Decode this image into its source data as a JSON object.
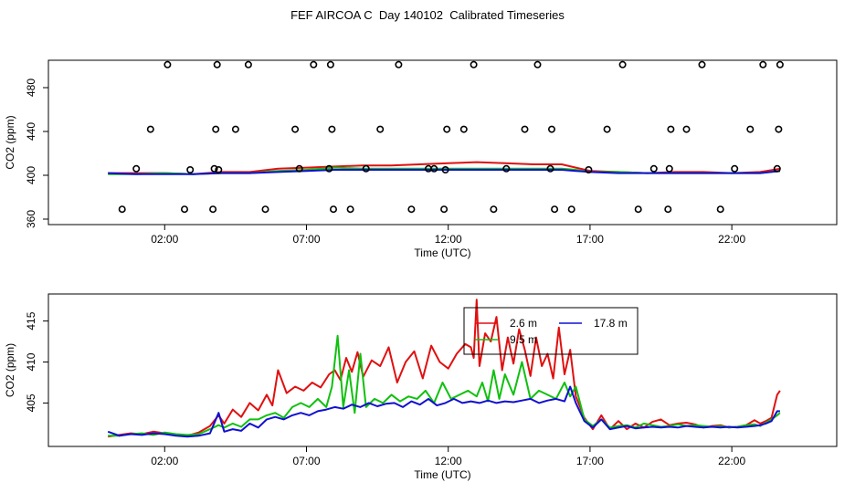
{
  "title": "FEF AIRCOA C  Day 140102  Calibrated Timeseries",
  "colors": {
    "red": "#e01010",
    "green": "#10c010",
    "blue": "#1010d0",
    "axis": "#000000"
  },
  "chart_data": [
    {
      "type": "scatter+line",
      "xlabel": "Time (UTC)",
      "ylabel": "CO2 (ppm)",
      "x_ticks": [
        "02:00",
        "07:00",
        "12:00",
        "17:00",
        "22:00"
      ],
      "x_tick_hours": [
        2,
        7,
        12,
        17,
        22
      ],
      "y_ticks": [
        360,
        400,
        440,
        480
      ],
      "y_tick_labels": [
        "360",
        "400",
        "440",
        "480"
      ],
      "xlim": [
        -2.1,
        25.7
      ],
      "ylim": [
        355,
        505
      ],
      "scatter_points": {
        "hours": [
          0.5,
          1.0,
          1.5,
          2.1,
          2.7,
          2.9,
          3.7,
          3.75,
          3.8,
          3.85,
          3.9,
          4.5,
          4.95,
          5.55,
          6.6,
          6.75,
          7.25,
          7.8,
          7.85,
          7.9,
          7.95,
          8.55,
          9.1,
          9.6,
          10.25,
          10.7,
          11.3,
          11.5,
          11.85,
          11.9,
          11.95,
          12.55,
          12.9,
          13.6,
          14.05,
          14.7,
          15.15,
          15.6,
          15.65,
          15.75,
          16.35,
          16.95,
          17.6,
          18.15,
          18.7,
          19.25,
          19.75,
          19.8,
          19.85,
          20.4,
          20.95,
          21.6,
          22.1,
          22.65,
          23.1,
          23.6,
          23.65,
          23.7
        ],
        "values": [
          369,
          406,
          442,
          501,
          369,
          405,
          369,
          406,
          442,
          501,
          405,
          442,
          501,
          369,
          442,
          406,
          501,
          406,
          501,
          442,
          369,
          369,
          406,
          442,
          501,
          369,
          406,
          406,
          369,
          405,
          442,
          442,
          501,
          369,
          406,
          442,
          501,
          406,
          442,
          369,
          369,
          405,
          442,
          501,
          369,
          406,
          369,
          406,
          442,
          442,
          501,
          369,
          406,
          442,
          501,
          406,
          442,
          501
        ]
      },
      "series": [
        {
          "color": "#e01010",
          "hours": [
            0,
            1,
            2,
            3,
            4,
            5,
            6,
            7,
            8,
            9,
            10,
            11,
            12,
            13,
            14,
            15,
            16,
            16.5,
            17,
            18,
            19,
            20,
            21,
            22,
            23,
            23.7
          ],
          "values": [
            402,
            402,
            402,
            401,
            403,
            403,
            406,
            407,
            408,
            409,
            409,
            410,
            411,
            412,
            411,
            410,
            410,
            407,
            404,
            403,
            402,
            403,
            403,
            402,
            403,
            406
          ]
        },
        {
          "color": "#10c010",
          "hours": [
            0,
            1,
            2,
            3,
            4,
            5,
            6,
            7,
            8,
            9,
            10,
            11,
            12,
            13,
            14,
            15,
            16,
            16.5,
            17,
            18,
            19,
            20,
            21,
            22,
            23,
            23.7
          ],
          "values": [
            401,
            401,
            402,
            401,
            402,
            402,
            404,
            405,
            407,
            406,
            406,
            406,
            406,
            406,
            406,
            406,
            406,
            405,
            403,
            403,
            402,
            402,
            402,
            402,
            402,
            404
          ]
        },
        {
          "color": "#1010d0",
          "hours": [
            0,
            1,
            2,
            3,
            4,
            5,
            6,
            7,
            8,
            9,
            10,
            11,
            12,
            13,
            14,
            15,
            16,
            16.5,
            17,
            18,
            19,
            20,
            21,
            22,
            23,
            23.7
          ],
          "values": [
            402,
            401,
            401,
            401,
            402,
            402,
            403,
            404,
            405,
            405,
            405,
            405,
            405,
            405,
            405,
            405,
            405,
            404,
            403,
            402,
            402,
            402,
            402,
            402,
            402,
            404
          ]
        }
      ]
    },
    {
      "type": "line",
      "xlabel": "Time (UTC)",
      "ylabel": "CO2 (ppm)",
      "x_ticks": [
        "02:00",
        "07:00",
        "12:00",
        "17:00",
        "22:00"
      ],
      "x_tick_hours": [
        2,
        7,
        12,
        17,
        22
      ],
      "y_ticks": [
        405,
        410,
        415
      ],
      "y_tick_labels": [
        "405",
        "410",
        "415"
      ],
      "xlim": [
        -2.1,
        25.7
      ],
      "ylim": [
        399.7,
        418.3
      ],
      "legend": {
        "placement": "top-center",
        "entries": [
          {
            "label": "2.6 m",
            "color": "#e01010"
          },
          {
            "label": "9.5 m",
            "color": "#10c010"
          },
          {
            "label": "17.8 m",
            "color": "#1010d0"
          }
        ]
      },
      "series": [
        {
          "name": "2.6 m",
          "color": "#e01010",
          "hours": [
            0,
            0.4,
            0.8,
            1.2,
            1.6,
            2.0,
            2.4,
            2.8,
            3.2,
            3.6,
            3.9,
            4.1,
            4.4,
            4.7,
            5.0,
            5.3,
            5.6,
            5.8,
            6.0,
            6.3,
            6.6,
            6.9,
            7.2,
            7.5,
            7.8,
            8.0,
            8.2,
            8.4,
            8.6,
            8.8,
            9.0,
            9.3,
            9.6,
            9.9,
            10.2,
            10.5,
            10.8,
            11.1,
            11.4,
            11.7,
            12.0,
            12.3,
            12.6,
            12.8,
            12.9,
            13.0,
            13.1,
            13.3,
            13.5,
            13.7,
            13.9,
            14.1,
            14.3,
            14.5,
            14.7,
            14.9,
            15.1,
            15.3,
            15.5,
            15.7,
            15.9,
            16.1,
            16.3,
            16.5,
            16.8,
            17.1,
            17.4,
            17.7,
            18.0,
            18.3,
            18.6,
            18.9,
            19.2,
            19.5,
            19.8,
            20.1,
            20.4,
            20.7,
            21.0,
            21.3,
            21.6,
            21.9,
            22.2,
            22.5,
            22.8,
            23.0,
            23.2,
            23.4,
            23.6,
            23.7
          ],
          "values": [
            400.9,
            401.1,
            401.3,
            401.2,
            401.5,
            401.3,
            401.1,
            401.0,
            401.4,
            402.2,
            403.5,
            402.5,
            404.2,
            403.3,
            405.0,
            404.1,
            406.0,
            404.7,
            409.0,
            406.2,
            407.0,
            406.5,
            407.5,
            406.9,
            408.5,
            409.0,
            407.8,
            410.5,
            408.8,
            411.2,
            408.2,
            410.2,
            409.5,
            411.8,
            407.5,
            410.0,
            411.3,
            408.0,
            412.0,
            410.0,
            409.2,
            411.0,
            412.2,
            411.8,
            410.5,
            417.6,
            409.5,
            413.5,
            412.5,
            415.5,
            409.0,
            413.0,
            409.8,
            414.0,
            411.5,
            408.3,
            413.0,
            409.5,
            411.0,
            408.0,
            414.2,
            408.5,
            411.5,
            405.8,
            403.2,
            401.8,
            403.5,
            401.8,
            402.8,
            401.8,
            402.5,
            402.0,
            402.7,
            403.0,
            402.3,
            402.5,
            402.6,
            402.4,
            402.0,
            402.2,
            402.3,
            402.0,
            402.1,
            402.3,
            402.9,
            402.5,
            402.8,
            403.2,
            406.0,
            406.5
          ]
        },
        {
          "name": "9.5 m",
          "color": "#10c010",
          "hours": [
            0,
            0.4,
            0.8,
            1.2,
            1.6,
            2.0,
            2.4,
            2.8,
            3.2,
            3.6,
            3.9,
            4.1,
            4.4,
            4.7,
            5.0,
            5.3,
            5.6,
            5.9,
            6.2,
            6.5,
            6.8,
            7.1,
            7.4,
            7.7,
            7.9,
            8.1,
            8.3,
            8.5,
            8.7,
            8.9,
            9.1,
            9.4,
            9.7,
            10.0,
            10.3,
            10.6,
            10.9,
            11.2,
            11.5,
            11.8,
            12.1,
            12.4,
            12.7,
            13.0,
            13.2,
            13.4,
            13.6,
            13.8,
            14.0,
            14.3,
            14.6,
            14.9,
            15.2,
            15.5,
            15.8,
            16.1,
            16.3,
            16.5,
            16.8,
            17.1,
            17.4,
            17.7,
            18.0,
            18.3,
            18.6,
            18.9,
            19.2,
            19.5,
            19.8,
            20.1,
            20.4,
            20.7,
            21.0,
            21.3,
            21.6,
            21.9,
            22.2,
            22.5,
            22.8,
            23.0,
            23.2,
            23.4,
            23.6,
            23.7
          ],
          "values": [
            401.0,
            401.0,
            401.2,
            401.3,
            401.1,
            401.4,
            401.2,
            401.1,
            401.2,
            401.8,
            402.3,
            402.0,
            402.5,
            402.1,
            403.0,
            403.0,
            403.5,
            403.8,
            403.2,
            404.5,
            405.0,
            404.5,
            405.5,
            404.5,
            407.0,
            413.2,
            404.5,
            409.0,
            403.8,
            411.0,
            404.5,
            405.5,
            405.0,
            406.0,
            405.2,
            405.8,
            405.5,
            406.5,
            405.0,
            407.5,
            405.5,
            406.0,
            406.5,
            405.8,
            407.5,
            405.2,
            409.0,
            405.5,
            408.5,
            406.0,
            410.0,
            405.5,
            406.5,
            406.0,
            405.5,
            407.5,
            405.8,
            407.0,
            403.0,
            402.2,
            403.0,
            402.0,
            402.2,
            402.3,
            402.0,
            402.5,
            402.3,
            402.1,
            402.2,
            402.4,
            402.2,
            402.3,
            402.2,
            402.1,
            402.2,
            402.0,
            402.1,
            402.3,
            402.4,
            402.2,
            402.6,
            403.0,
            403.5,
            403.8
          ]
        },
        {
          "name": "17.8 m",
          "color": "#1010d0",
          "hours": [
            0,
            0.4,
            0.8,
            1.2,
            1.6,
            2.0,
            2.4,
            2.8,
            3.2,
            3.6,
            3.9,
            4.1,
            4.4,
            4.7,
            5.0,
            5.3,
            5.6,
            5.9,
            6.2,
            6.5,
            6.8,
            7.1,
            7.4,
            7.7,
            8.0,
            8.3,
            8.6,
            8.9,
            9.2,
            9.5,
            9.8,
            10.1,
            10.4,
            10.7,
            11.0,
            11.3,
            11.6,
            11.9,
            12.2,
            12.5,
            12.8,
            13.1,
            13.4,
            13.7,
            14.0,
            14.3,
            14.6,
            14.9,
            15.2,
            15.5,
            15.8,
            16.1,
            16.3,
            16.5,
            16.8,
            17.1,
            17.4,
            17.7,
            18.0,
            18.3,
            18.6,
            18.9,
            19.2,
            19.5,
            19.8,
            20.1,
            20.4,
            20.7,
            21.0,
            21.3,
            21.6,
            21.9,
            22.2,
            22.5,
            22.8,
            23.0,
            23.2,
            23.4,
            23.6,
            23.7
          ],
          "values": [
            401.5,
            401.0,
            401.2,
            401.1,
            401.3,
            401.2,
            401.0,
            400.9,
            401.0,
            401.3,
            403.8,
            401.5,
            401.8,
            401.6,
            402.5,
            402.0,
            403.0,
            403.3,
            403.0,
            403.5,
            403.8,
            403.5,
            404.0,
            404.2,
            404.5,
            404.3,
            404.8,
            404.5,
            405.0,
            404.6,
            404.9,
            405.0,
            404.5,
            405.2,
            404.8,
            405.5,
            404.7,
            405.0,
            405.5,
            405.0,
            405.2,
            405.0,
            405.3,
            405.0,
            405.2,
            405.1,
            405.3,
            405.5,
            405.0,
            405.3,
            405.5,
            405.2,
            407.0,
            405.0,
            402.8,
            402.0,
            403.0,
            401.8,
            402.0,
            402.2,
            401.9,
            402.0,
            402.1,
            402.0,
            402.1,
            402.0,
            402.2,
            402.1,
            402.0,
            402.1,
            402.0,
            402.1,
            402.0,
            402.1,
            402.2,
            402.3,
            402.5,
            402.8,
            404.0,
            404.0
          ]
        }
      ]
    }
  ]
}
